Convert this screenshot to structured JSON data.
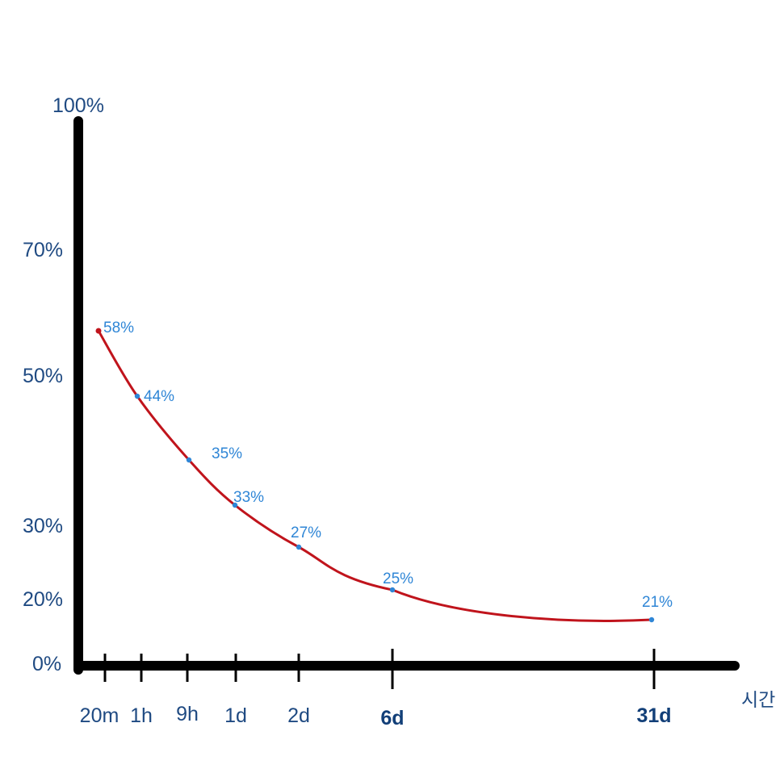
{
  "chart_data": {
    "type": "line",
    "categories": [
      "20m",
      "1h",
      "9h",
      "1d",
      "2d",
      "6d",
      "31d"
    ],
    "values": [
      58,
      44,
      35,
      33,
      27,
      25,
      21
    ],
    "data_labels": [
      "58%",
      "44%",
      "35%",
      "33%",
      "27%",
      "25%",
      "21%"
    ],
    "y_ticks": [
      {
        "value": 100,
        "label": "100%"
      },
      {
        "value": 70,
        "label": "70%"
      },
      {
        "value": 50,
        "label": "50%"
      },
      {
        "value": 30,
        "label": "30%"
      },
      {
        "value": 20,
        "label": "20%"
      },
      {
        "value": 0,
        "label": "0%"
      }
    ],
    "x_unit_label": "시간",
    "ylim": [
      0,
      100
    ],
    "grid": false,
    "colors": {
      "axis": "#000000",
      "curve": "#c0141c",
      "points": "#2f86d6",
      "tick_labels": "#1f4a82",
      "data_labels": "#2f86d6"
    }
  }
}
